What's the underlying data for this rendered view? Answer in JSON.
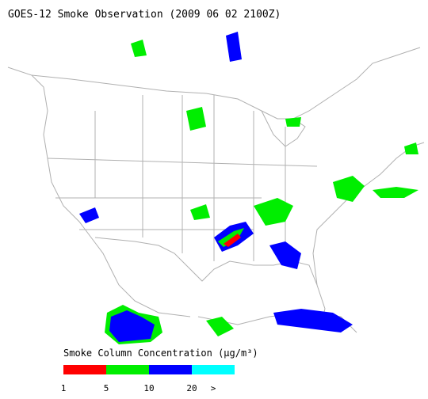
{
  "title": "GOES-12 Smoke Observation (2009 06 02  2100Z)",
  "legend": {
    "label": "Smoke Column Concentration (μg/m³)",
    "ticks": [
      "1",
      "5",
      "10",
      "20",
      ">"
    ],
    "colors": [
      "#ff0000",
      "#00ee00",
      "#0000ff",
      "#00ffff"
    ]
  }
}
